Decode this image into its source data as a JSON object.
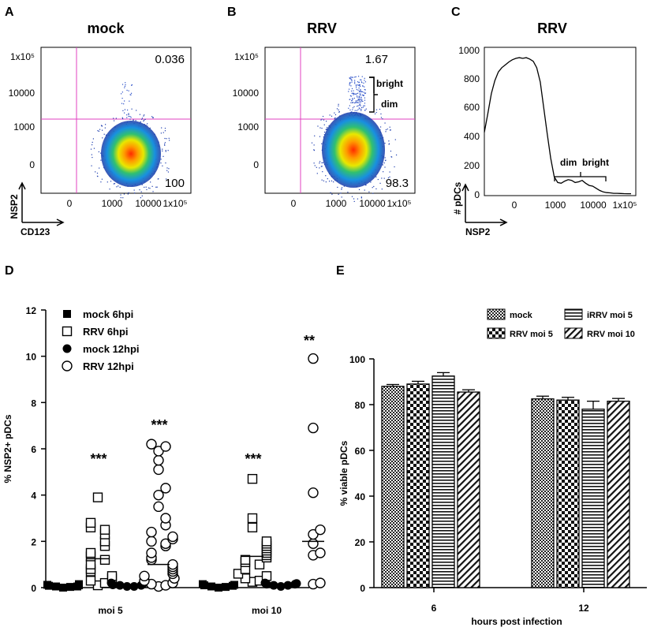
{
  "panels": {
    "A": {
      "letter": "A",
      "title": "mock",
      "ylabel": "NSP2",
      "xlabel": "CD123",
      "yticks": [
        "1x10⁵",
        "10000",
        "1000",
        "0"
      ],
      "xticks": [
        "0",
        "1000",
        "10000",
        "1x10⁵"
      ],
      "upper_value": "0.036",
      "lower_value": "100"
    },
    "B": {
      "letter": "B",
      "title": "RRV",
      "yticks": [
        "1x10⁵",
        "10000",
        "1000",
        "0"
      ],
      "xticks": [
        "0",
        "1000",
        "10000",
        "1x10⁵"
      ],
      "upper_value": "1.67",
      "lower_value": "98.3",
      "gate_bright": "bright",
      "gate_dim": "dim"
    },
    "C": {
      "letter": "C",
      "title": "RRV",
      "ylabel": "# pDCs",
      "xlabel": "NSP2",
      "yticks": [
        "1000",
        "800",
        "600",
        "400",
        "200",
        "0"
      ],
      "xticks": [
        "0",
        "1000",
        "10000",
        "1x10⁵"
      ],
      "gate_dim": "dim",
      "gate_bright": "bright"
    },
    "D": {
      "letter": "D",
      "significance": [
        "***",
        "***",
        "***",
        "**"
      ]
    },
    "E": {
      "letter": "E"
    }
  },
  "chart_data": [
    {
      "type": "line",
      "panel": "C",
      "ylim": [
        0,
        1000
      ],
      "y": [
        430,
        560,
        700,
        790,
        850,
        880,
        900,
        920,
        935,
        945,
        950,
        945,
        950,
        940,
        925,
        880,
        780,
        600,
        420,
        250,
        120,
        80,
        75,
        90,
        100,
        95,
        80,
        85,
        95,
        75,
        60,
        55,
        40,
        25,
        15,
        10,
        8,
        5,
        5,
        4,
        3,
        2,
        2
      ]
    },
    {
      "type": "scatter",
      "panel": "D",
      "ylabel": "% NSP2+ pDCs",
      "ylim": [
        0,
        12
      ],
      "yticks": [
        0,
        2,
        4,
        6,
        8,
        10,
        12
      ],
      "categories": [
        "moi 5",
        "moi 10"
      ],
      "series": [
        {
          "name": "mock 6hpi",
          "marker": "filled-square",
          "points": [
            [
              0.05,
              0.1,
              0.15,
              0.05,
              0.0,
              0.08,
              0.12,
              0.03
            ],
            [
              0.05,
              0.1,
              0.0,
              0.15,
              0.08,
              0.03,
              0.12
            ]
          ],
          "means": [
            0.05,
            0.05
          ]
        },
        {
          "name": "RRV 6hpi",
          "marker": "open-square",
          "points": [
            [
              3.9,
              2.8,
              2.6,
              2.5,
              2.3,
              2.0,
              1.8,
              1.5,
              1.35,
              1.2,
              1.0,
              0.8,
              0.7,
              0.5,
              0.4,
              0.3,
              0.2,
              0.1
            ],
            [
              4.7,
              3.0,
              2.6,
              2.0,
              1.9,
              1.8,
              1.7,
              1.6,
              1.5,
              1.4,
              1.3,
              1.2,
              1.1,
              1.0,
              0.8,
              0.6,
              0.5,
              0.4,
              0.3,
              0.25
            ]
          ],
          "means": [
            1.25,
            1.35
          ]
        },
        {
          "name": "mock 12hpi",
          "marker": "filled-circle",
          "points": [
            [
              0.1,
              0.15,
              0.05,
              0.2,
              0.1,
              0.05,
              0.12
            ],
            [
              0.15,
              0.2,
              0.1,
              0.05,
              0.15,
              0.1,
              0.18
            ]
          ],
          "means": [
            0.1,
            0.15
          ]
        },
        {
          "name": "RRV 12hpi",
          "marker": "open-circle",
          "points": [
            [
              6.2,
              6.1,
              5.9,
              5.5,
              5.1,
              4.3,
              4.0,
              3.5,
              3.0,
              2.7,
              2.4,
              2.2,
              2.1,
              2.0,
              1.9,
              1.8,
              1.5,
              1.3,
              1.2,
              1.0,
              0.9,
              0.8,
              0.7,
              0.6,
              0.5,
              0.4,
              0.3,
              0.2,
              0.15,
              0.1,
              0.05
            ],
            [
              9.9,
              6.9,
              4.1,
              2.5,
              2.3,
              1.9,
              1.5,
              1.4,
              0.2,
              0.15
            ]
          ],
          "means": [
            1.0,
            2.0
          ]
        }
      ]
    },
    {
      "type": "bar",
      "panel": "E",
      "ylabel": "% viable pDCs",
      "xlabel": "hours post infection",
      "ylim": [
        0,
        100
      ],
      "yticks": [
        0,
        20,
        40,
        60,
        80,
        100
      ],
      "categories": [
        "6",
        "12"
      ],
      "series": [
        {
          "name": "mock",
          "pattern": "checker",
          "values": [
            88,
            82.5
          ],
          "errors": [
            0.8,
            1.2
          ]
        },
        {
          "name": "RRV moi 5",
          "pattern": "bigcheck",
          "values": [
            89,
            82
          ],
          "errors": [
            1.2,
            1.2
          ]
        },
        {
          "name": "iRRV moi 5",
          "pattern": "hlines",
          "values": [
            92.5,
            78
          ],
          "errors": [
            1.5,
            3.5
          ]
        },
        {
          "name": "RRV moi 10",
          "pattern": "diag",
          "values": [
            85.5,
            81.5
          ],
          "errors": [
            1.0,
            1.2
          ]
        }
      ]
    }
  ]
}
